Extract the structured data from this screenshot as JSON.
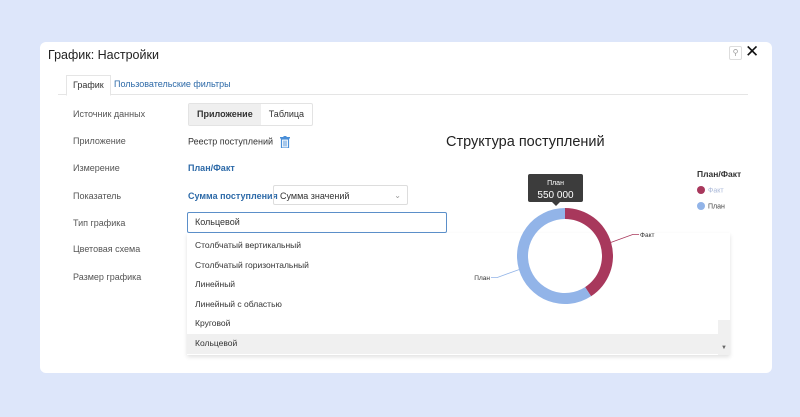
{
  "dialog": {
    "title": "График: Настройки",
    "pin_icon": "pin-icon",
    "close_icon": "close-icon"
  },
  "tabs": [
    {
      "label": "График",
      "active": true
    },
    {
      "label": "Пользовательские фильтры",
      "active": false
    }
  ],
  "form": {
    "labels": [
      "Источник данных",
      "Приложение",
      "Измерение",
      "Показатель",
      "Тип графика",
      "Цветовая схема",
      "Размер графика"
    ],
    "source": {
      "options": [
        "Приложение",
        "Таблица"
      ],
      "selected": "Приложение"
    },
    "app": "Реестр поступлений",
    "dimension": "План/Факт",
    "metric": "Сумма поступления",
    "aggregation": "Сумма значений",
    "chart_type": "Кольцевой",
    "chart_type_options": [
      "Столбчатый вертикальный",
      "Столбчатый горизонтальный",
      "Линейный",
      "Линейный с областью",
      "Круговой",
      "Кольцевой"
    ]
  },
  "chart_data": {
    "type": "pie",
    "variant": "donut",
    "title": "Структура поступлений",
    "legend_title": "План/Факт",
    "legend_placement": "right",
    "categories": [
      "Факт",
      "План"
    ],
    "values": [
      380000,
      550000
    ],
    "colors": [
      "#a8385c",
      "#92b4e8"
    ],
    "tooltip": {
      "label": "План",
      "value": "550 000"
    }
  }
}
